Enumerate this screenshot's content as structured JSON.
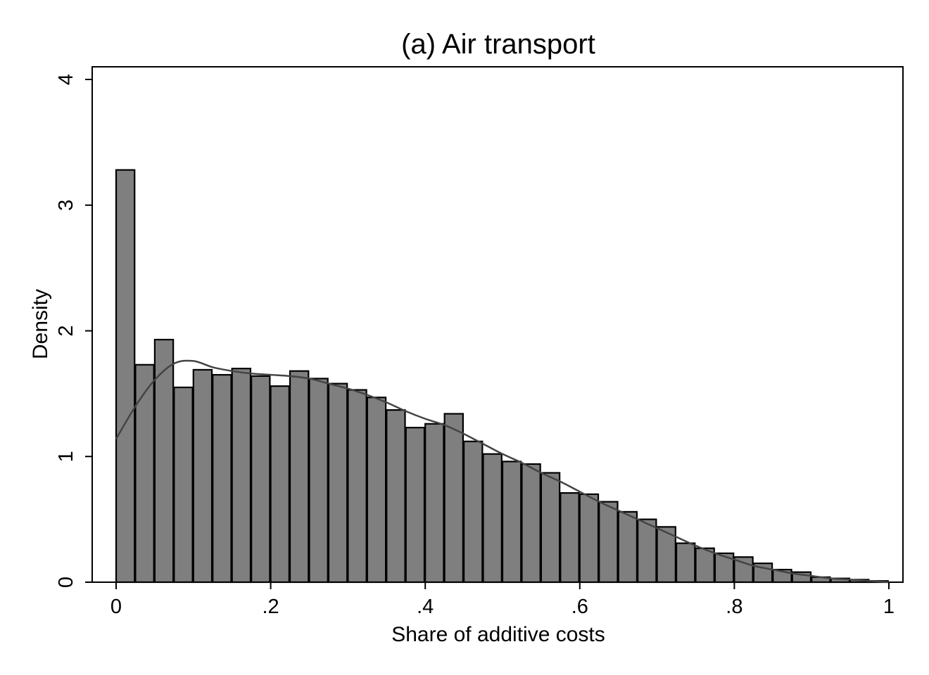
{
  "chart_data": {
    "type": "bar",
    "title": "(a) Air transport",
    "xlabel": "Share of additive costs",
    "ylabel": "Density",
    "xlim": [
      0,
      1
    ],
    "ylim": [
      0,
      4
    ],
    "x_ticks": [
      {
        "value": 0,
        "label": "0"
      },
      {
        "value": 0.2,
        "label": ".2"
      },
      {
        "value": 0.4,
        "label": ".4"
      },
      {
        "value": 0.6,
        "label": ".6"
      },
      {
        "value": 0.8,
        "label": ".8"
      },
      {
        "value": 1,
        "label": "1"
      }
    ],
    "y_ticks": [
      {
        "value": 0,
        "label": "0"
      },
      {
        "value": 1,
        "label": "1"
      },
      {
        "value": 2,
        "label": "2"
      },
      {
        "value": 3,
        "label": "3"
      },
      {
        "value": 4,
        "label": "4"
      }
    ],
    "bin_width": 0.025,
    "bins": [
      0,
      0.025,
      0.05,
      0.075,
      0.1,
      0.125,
      0.15,
      0.175,
      0.2,
      0.225,
      0.25,
      0.275,
      0.3,
      0.325,
      0.35,
      0.375,
      0.4,
      0.425,
      0.45,
      0.475,
      0.5,
      0.525,
      0.55,
      0.575,
      0.6,
      0.625,
      0.65,
      0.675,
      0.7,
      0.725,
      0.75,
      0.775,
      0.8,
      0.825,
      0.85,
      0.875,
      0.9,
      0.925,
      0.95,
      0.975
    ],
    "values": [
      3.28,
      1.73,
      1.93,
      1.55,
      1.69,
      1.65,
      1.7,
      1.64,
      1.56,
      1.68,
      1.62,
      1.58,
      1.53,
      1.47,
      1.37,
      1.23,
      1.26,
      1.34,
      1.12,
      1.02,
      0.96,
      0.94,
      0.87,
      0.71,
      0.7,
      0.64,
      0.56,
      0.5,
      0.44,
      0.31,
      0.27,
      0.23,
      0.2,
      0.15,
      0.1,
      0.08,
      0.04,
      0.03,
      0.02,
      0.01
    ],
    "kde": {
      "x": [
        0,
        0.025,
        0.05,
        0.075,
        0.1,
        0.125,
        0.15,
        0.175,
        0.2,
        0.225,
        0.25,
        0.275,
        0.3,
        0.325,
        0.35,
        0.375,
        0.4,
        0.425,
        0.45,
        0.475,
        0.5,
        0.525,
        0.55,
        0.575,
        0.6,
        0.625,
        0.65,
        0.675,
        0.7,
        0.725,
        0.75,
        0.775,
        0.8,
        0.825,
        0.85,
        0.875,
        0.9,
        0.925,
        0.95,
        0.975,
        1
      ],
      "y": [
        1.14,
        1.4,
        1.61,
        1.74,
        1.76,
        1.71,
        1.68,
        1.66,
        1.65,
        1.64,
        1.62,
        1.58,
        1.54,
        1.49,
        1.43,
        1.36,
        1.3,
        1.25,
        1.18,
        1.1,
        1.02,
        0.95,
        0.87,
        0.8,
        0.72,
        0.64,
        0.57,
        0.5,
        0.43,
        0.36,
        0.29,
        0.23,
        0.18,
        0.13,
        0.1,
        0.07,
        0.05,
        0.03,
        0.02,
        0.01,
        0.0
      ]
    },
    "bar_fill": "#7f7f7f",
    "bar_stroke": "#000000",
    "line_color": "#444444",
    "grid": false,
    "legend": "none"
  }
}
